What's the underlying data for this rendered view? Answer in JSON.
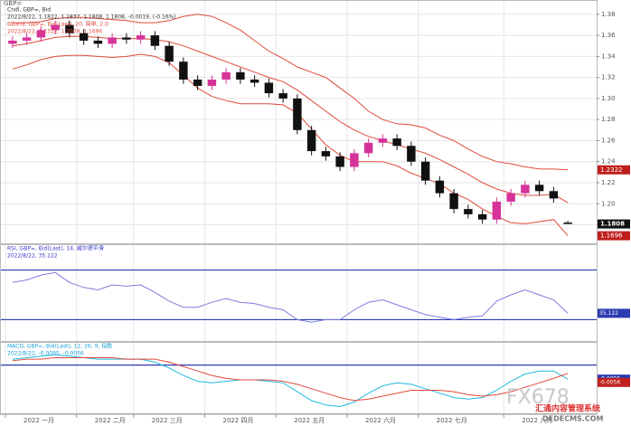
{
  "header": "GBP=",
  "watermark": "FX678",
  "watermark_sub": "汇通内容管理系统",
  "watermark_url": "DEDECMS.COM",
  "chart_data": [
    {
      "type": "candlestick",
      "legend_lines": [
        "Cndl, GBP=, Bid",
        "2022/8/22, 1.1822, 1.1837, 1.1808, 1.1808, -0.0019, (-0.16%)",
        "BBand, GBP=, Bid(Last), 20, 简单, 2.0",
        "2022/8/22, 1.2322, 1.2009, 1.1696"
      ],
      "legend_colors": [
        "#333333",
        "#333333",
        "#e04a3c",
        "#e04a3c"
      ],
      "open": [
        1.352,
        1.355,
        1.358,
        1.365,
        1.37,
        1.362,
        1.355,
        1.352,
        1.358,
        1.356,
        1.36,
        1.35,
        1.335,
        1.318,
        1.312,
        1.318,
        1.325,
        1.318,
        1.315,
        1.305,
        1.3,
        1.27,
        1.25,
        1.245,
        1.235,
        1.248,
        1.258,
        1.262,
        1.255,
        1.24,
        1.222,
        1.21,
        1.195,
        1.19,
        1.185,
        1.202,
        1.21,
        1.218,
        1.212,
        1.1822
      ],
      "high": [
        1.359,
        1.362,
        1.369,
        1.374,
        1.374,
        1.366,
        1.359,
        1.362,
        1.362,
        1.364,
        1.364,
        1.354,
        1.339,
        1.322,
        1.322,
        1.329,
        1.329,
        1.322,
        1.319,
        1.309,
        1.304,
        1.274,
        1.254,
        1.249,
        1.252,
        1.262,
        1.266,
        1.266,
        1.259,
        1.244,
        1.226,
        1.214,
        1.199,
        1.194,
        1.206,
        1.214,
        1.222,
        1.222,
        1.216,
        1.1837
      ],
      "low": [
        1.348,
        1.351,
        1.354,
        1.361,
        1.358,
        1.351,
        1.348,
        1.348,
        1.352,
        1.352,
        1.346,
        1.331,
        1.314,
        1.308,
        1.308,
        1.314,
        1.314,
        1.311,
        1.301,
        1.296,
        1.266,
        1.246,
        1.241,
        1.231,
        1.231,
        1.244,
        1.254,
        1.251,
        1.236,
        1.218,
        1.206,
        1.191,
        1.186,
        1.181,
        1.181,
        1.198,
        1.206,
        1.208,
        1.201,
        1.1808
      ],
      "close": [
        1.355,
        1.358,
        1.365,
        1.37,
        1.362,
        1.355,
        1.352,
        1.358,
        1.356,
        1.36,
        1.35,
        1.335,
        1.318,
        1.312,
        1.318,
        1.325,
        1.318,
        1.315,
        1.305,
        1.3,
        1.27,
        1.25,
        1.245,
        1.235,
        1.248,
        1.258,
        1.262,
        1.255,
        1.24,
        1.222,
        1.21,
        1.195,
        1.19,
        1.185,
        1.202,
        1.21,
        1.218,
        1.212,
        1.205,
        1.1808
      ],
      "up_color": "#d6339a",
      "down_color": "#111111",
      "series": [
        {
          "color": "#e04a3c",
          "values": [
            1.372,
            1.372,
            1.373,
            1.376,
            1.377,
            1.377,
            1.376,
            1.375,
            1.374,
            1.372,
            1.372,
            1.374,
            1.378,
            1.38,
            1.378,
            1.372,
            1.365,
            1.355,
            1.345,
            1.338,
            1.33,
            1.325,
            1.32,
            1.31,
            1.3,
            1.288,
            1.28,
            1.276,
            1.275,
            1.272,
            1.265,
            1.26,
            1.252,
            1.245,
            1.24,
            1.238,
            1.235,
            1.233,
            1.233,
            1.2322
          ]
        },
        {
          "color": "#e04a3c",
          "values": [
            1.35,
            1.352,
            1.355,
            1.358,
            1.359,
            1.359,
            1.358,
            1.357,
            1.357,
            1.357,
            1.356,
            1.354,
            1.35,
            1.345,
            1.34,
            1.335,
            1.33,
            1.325,
            1.32,
            1.316,
            1.308,
            1.298,
            1.288,
            1.278,
            1.27,
            1.264,
            1.26,
            1.256,
            1.252,
            1.248,
            1.242,
            1.235,
            1.228,
            1.22,
            1.214,
            1.21,
            1.208,
            1.208,
            1.209,
            1.2009
          ]
        },
        {
          "color": "#e04a3c",
          "values": [
            1.328,
            1.332,
            1.337,
            1.34,
            1.341,
            1.341,
            1.34,
            1.339,
            1.34,
            1.342,
            1.34,
            1.334,
            1.322,
            1.31,
            1.302,
            1.298,
            1.295,
            1.295,
            1.295,
            1.294,
            1.286,
            1.271,
            1.256,
            1.246,
            1.24,
            1.24,
            1.24,
            1.236,
            1.229,
            1.224,
            1.219,
            1.21,
            1.204,
            1.195,
            1.188,
            1.182,
            1.181,
            1.183,
            1.185,
            1.1696
          ]
        }
      ],
      "ylim": [
        1.165,
        1.385
      ],
      "yticks": [
        1.18,
        {
          "value": 1.2,
          "label": "1.20"
        },
        1.22,
        1.24,
        1.26,
        1.28,
        {
          "value": 1.3,
          "label": "1.30"
        },
        1.32,
        1.34,
        1.36,
        1.38
      ],
      "grid": true
    },
    {
      "type": "line",
      "legend_lines": [
        "RSI, GBP=, Bid(Last), 14, 威尔德平滑",
        "2022/8/22, 35.122"
      ],
      "legend_colors": [
        "#3a3ad0",
        "#3a3ad0"
      ],
      "series": [
        {
          "color": "#7d7de0",
          "values": [
            60,
            62,
            66,
            68,
            60,
            56,
            54,
            58,
            57,
            58,
            52,
            45,
            40,
            40,
            44,
            47,
            44,
            43,
            40,
            38,
            30,
            28,
            30,
            30,
            38,
            44,
            46,
            42,
            38,
            34,
            32,
            30,
            32,
            33,
            45,
            50,
            54,
            50,
            46,
            35.122
          ]
        }
      ],
      "levels": [
        70,
        30
      ],
      "level_color": "#2b3bb0",
      "ylim": [
        15,
        85
      ],
      "grid": true
    },
    {
      "type": "line",
      "legend_lines": [
        "MACD, GBP=, Bid(Last), 12, 26, 9, 指数",
        "2022/8/22, -0.0095, -0.0056"
      ],
      "legend_colors": [
        "#1aa0d8",
        "#1aa0d8"
      ],
      "series": [
        {
          "color": "#22b8e0",
          "values": [
            0.004,
            0.005,
            0.006,
            0.007,
            0.006,
            0.005,
            0.004,
            0.004,
            0.004,
            0.004,
            0.002,
            -0.002,
            -0.007,
            -0.011,
            -0.012,
            -0.011,
            -0.01,
            -0.01,
            -0.011,
            -0.012,
            -0.018,
            -0.024,
            -0.027,
            -0.028,
            -0.025,
            -0.019,
            -0.014,
            -0.012,
            -0.013,
            -0.016,
            -0.019,
            -0.022,
            -0.023,
            -0.022,
            -0.017,
            -0.011,
            -0.006,
            -0.004,
            -0.004,
            -0.0095
          ]
        },
        {
          "color": "#e04a3c",
          "values": [
            0.003,
            0.004,
            0.004,
            0.005,
            0.005,
            0.005,
            0.005,
            0.005,
            0.004,
            0.004,
            0.004,
            0.002,
            -0.001,
            -0.004,
            -0.007,
            -0.009,
            -0.01,
            -0.01,
            -0.01,
            -0.011,
            -0.013,
            -0.016,
            -0.019,
            -0.022,
            -0.024,
            -0.023,
            -0.021,
            -0.019,
            -0.017,
            -0.017,
            -0.017,
            -0.018,
            -0.02,
            -0.021,
            -0.02,
            -0.018,
            -0.015,
            -0.012,
            -0.009,
            -0.0056
          ]
        }
      ],
      "levels": [
        0
      ],
      "level_color": "#2b3bb0",
      "ylim": [
        -0.032,
        0.012
      ],
      "grid": true
    }
  ],
  "months": [
    {
      "label": "2022 一月",
      "index": 0
    },
    {
      "label": "2022 二月",
      "index": 5
    },
    {
      "label": "2022 三月",
      "index": 9
    },
    {
      "label": "2022 四月",
      "index": 14
    },
    {
      "label": "2022 五月",
      "index": 19
    },
    {
      "label": "2022 六月",
      "index": 24
    },
    {
      "label": "2022 七月",
      "index": 29
    },
    {
      "label": "2022 八月",
      "index": 35
    }
  ]
}
